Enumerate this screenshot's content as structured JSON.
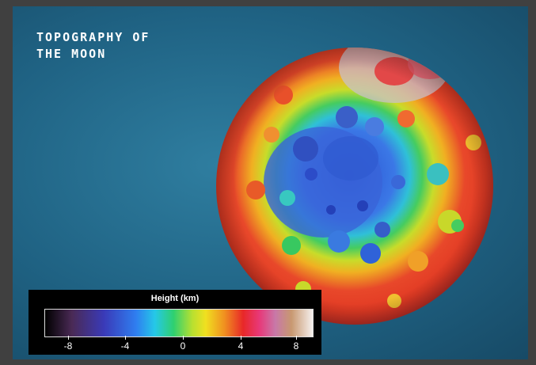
{
  "title": {
    "line1": "TOPOGRAPHY OF",
    "line2": "THE MOON"
  },
  "legend": {
    "title": "Height (km)",
    "ticks": [
      "-8",
      "-4",
      "0",
      "4",
      "8"
    ],
    "tick_values": [
      -8,
      -4,
      0,
      4,
      8
    ],
    "range": [
      -10,
      10
    ],
    "colors": [
      "#000000",
      "#4a2a55",
      "#3a3ab8",
      "#2f7ef0",
      "#25c8e8",
      "#2fd070",
      "#b8e030",
      "#f0e020",
      "#f09020",
      "#e82828",
      "#e83878",
      "#c878a8",
      "#c89870",
      "#f5f0ee"
    ]
  },
  "map": {
    "background_color": "#1f6283",
    "subject": "moon-topography-icon"
  }
}
